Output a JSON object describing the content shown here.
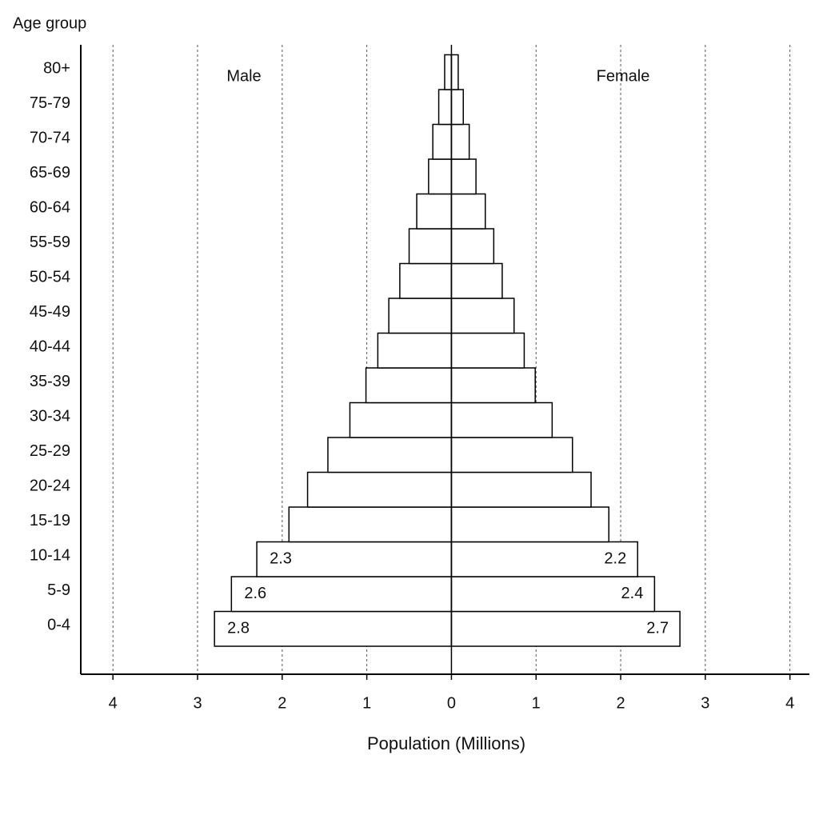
{
  "chart_data": {
    "type": "population_pyramid",
    "ylabel": "Age group",
    "xlabel": "Population (Millions)",
    "categories": [
      "0-4",
      "5-9",
      "10-14",
      "15-19",
      "20-24",
      "25-29",
      "30-34",
      "35-39",
      "40-44",
      "45-49",
      "50-54",
      "55-59",
      "60-64",
      "65-69",
      "70-74",
      "75-79",
      "80+"
    ],
    "series": [
      {
        "name": "Male",
        "side": "left",
        "color": "#ffffff",
        "edgecolor": "#000000",
        "values": [
          2.8,
          2.6,
          2.3,
          1.92,
          1.7,
          1.46,
          1.2,
          1.01,
          0.87,
          0.74,
          0.61,
          0.5,
          0.41,
          0.27,
          0.22,
          0.15,
          0.08
        ],
        "value_labels": [
          "2.8",
          "2.6",
          "2.3",
          null,
          null,
          null,
          null,
          null,
          null,
          null,
          null,
          null,
          null,
          null,
          null,
          null,
          null
        ]
      },
      {
        "name": "Female",
        "side": "right",
        "color": "#ffffff",
        "edgecolor": "#000000",
        "values": [
          2.7,
          2.4,
          2.2,
          1.86,
          1.65,
          1.43,
          1.19,
          0.99,
          0.86,
          0.74,
          0.6,
          0.5,
          0.4,
          0.29,
          0.21,
          0.14,
          0.08
        ],
        "value_labels": [
          "2.7",
          "2.4",
          "2.2",
          null,
          null,
          null,
          null,
          null,
          null,
          null,
          null,
          null,
          null,
          null,
          null,
          null,
          null
        ]
      }
    ],
    "xlim": [
      -4.38,
      4.23
    ],
    "xticks": [
      {
        "value": -4,
        "label": "4"
      },
      {
        "value": -3,
        "label": "3"
      },
      {
        "value": -2,
        "label": "2"
      },
      {
        "value": -1,
        "label": "1"
      },
      0,
      1,
      2,
      3,
      4
    ],
    "grid": true
  }
}
